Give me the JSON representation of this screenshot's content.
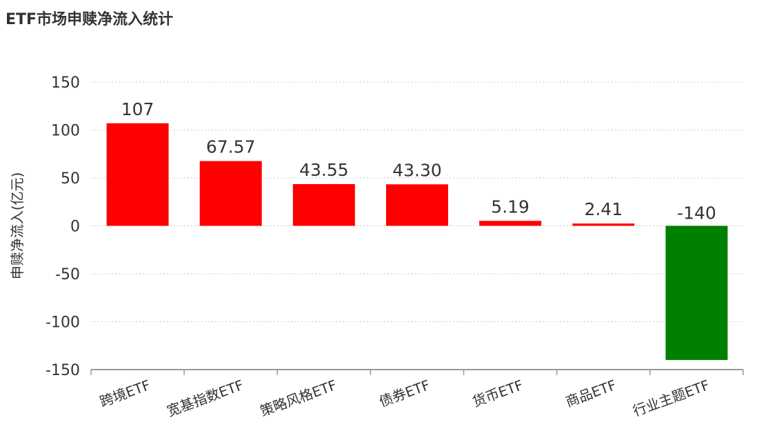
{
  "title": "ETF市场申赎净流入统计",
  "chart_data": {
    "type": "bar",
    "title": "ETF市场申赎净流入统计",
    "xlabel": "",
    "ylabel": "申赎净流入(亿元)",
    "categories": [
      "跨境ETF",
      "宽基指数ETF",
      "策略风格ETF",
      "债券ETF",
      "货币ETF",
      "商品ETF",
      "行业主题ETF"
    ],
    "values": [
      107,
      67.57,
      43.55,
      43.3,
      5.19,
      2.41,
      -140
    ],
    "data_labels": [
      "107",
      "67.57",
      "43.55",
      "43.30",
      "5.19",
      "2.41",
      "-140"
    ],
    "ylim": [
      -150,
      150
    ],
    "yticks": [
      150,
      100,
      50,
      0,
      -50,
      -100,
      -150
    ],
    "grid": true,
    "colors": {
      "positive": "#ff0000",
      "negative": "#008000"
    }
  }
}
